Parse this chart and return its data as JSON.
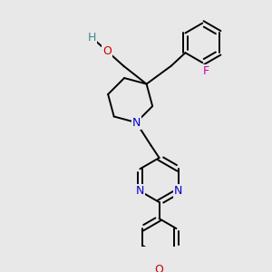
{
  "bg_color": "#e8e8e8",
  "atom_color_N": "#0000cc",
  "atom_color_O": "#cc0000",
  "atom_color_F": "#cc00aa",
  "atom_color_H": "#448888",
  "bond_color": "#000000",
  "bond_width": 1.4,
  "figsize": [
    3.0,
    3.0
  ],
  "dpi": 100,
  "xlim": [
    0,
    300
  ],
  "ylim": [
    0,
    300
  ]
}
